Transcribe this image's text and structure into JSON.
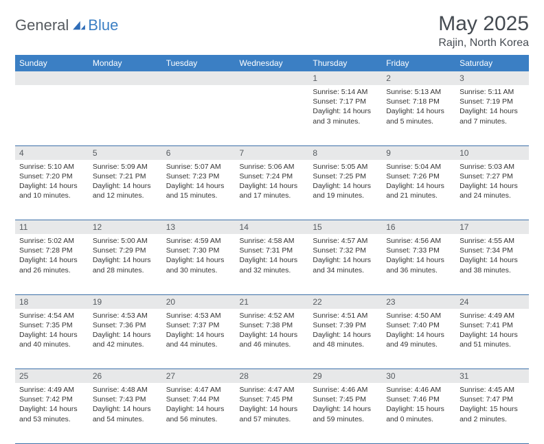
{
  "brand": {
    "part1": "General",
    "part2": "Blue"
  },
  "title": "May 2025",
  "location": "Rajin, North Korea",
  "colors": {
    "header_bg": "#3b7fc4",
    "header_text": "#ffffff",
    "daynum_bg": "#e7e8e9",
    "cell_border": "#3b6fa8",
    "body_text": "#333333",
    "title_text": "#454b52"
  },
  "weekdays": [
    "Sunday",
    "Monday",
    "Tuesday",
    "Wednesday",
    "Thursday",
    "Friday",
    "Saturday"
  ],
  "weeks": [
    [
      null,
      null,
      null,
      null,
      {
        "d": "1",
        "sr": "5:14 AM",
        "ss": "7:17 PM",
        "dl": "14 hours and 3 minutes."
      },
      {
        "d": "2",
        "sr": "5:13 AM",
        "ss": "7:18 PM",
        "dl": "14 hours and 5 minutes."
      },
      {
        "d": "3",
        "sr": "5:11 AM",
        "ss": "7:19 PM",
        "dl": "14 hours and 7 minutes."
      }
    ],
    [
      {
        "d": "4",
        "sr": "5:10 AM",
        "ss": "7:20 PM",
        "dl": "14 hours and 10 minutes."
      },
      {
        "d": "5",
        "sr": "5:09 AM",
        "ss": "7:21 PM",
        "dl": "14 hours and 12 minutes."
      },
      {
        "d": "6",
        "sr": "5:07 AM",
        "ss": "7:23 PM",
        "dl": "14 hours and 15 minutes."
      },
      {
        "d": "7",
        "sr": "5:06 AM",
        "ss": "7:24 PM",
        "dl": "14 hours and 17 minutes."
      },
      {
        "d": "8",
        "sr": "5:05 AM",
        "ss": "7:25 PM",
        "dl": "14 hours and 19 minutes."
      },
      {
        "d": "9",
        "sr": "5:04 AM",
        "ss": "7:26 PM",
        "dl": "14 hours and 21 minutes."
      },
      {
        "d": "10",
        "sr": "5:03 AM",
        "ss": "7:27 PM",
        "dl": "14 hours and 24 minutes."
      }
    ],
    [
      {
        "d": "11",
        "sr": "5:02 AM",
        "ss": "7:28 PM",
        "dl": "14 hours and 26 minutes."
      },
      {
        "d": "12",
        "sr": "5:00 AM",
        "ss": "7:29 PM",
        "dl": "14 hours and 28 minutes."
      },
      {
        "d": "13",
        "sr": "4:59 AM",
        "ss": "7:30 PM",
        "dl": "14 hours and 30 minutes."
      },
      {
        "d": "14",
        "sr": "4:58 AM",
        "ss": "7:31 PM",
        "dl": "14 hours and 32 minutes."
      },
      {
        "d": "15",
        "sr": "4:57 AM",
        "ss": "7:32 PM",
        "dl": "14 hours and 34 minutes."
      },
      {
        "d": "16",
        "sr": "4:56 AM",
        "ss": "7:33 PM",
        "dl": "14 hours and 36 minutes."
      },
      {
        "d": "17",
        "sr": "4:55 AM",
        "ss": "7:34 PM",
        "dl": "14 hours and 38 minutes."
      }
    ],
    [
      {
        "d": "18",
        "sr": "4:54 AM",
        "ss": "7:35 PM",
        "dl": "14 hours and 40 minutes."
      },
      {
        "d": "19",
        "sr": "4:53 AM",
        "ss": "7:36 PM",
        "dl": "14 hours and 42 minutes."
      },
      {
        "d": "20",
        "sr": "4:53 AM",
        "ss": "7:37 PM",
        "dl": "14 hours and 44 minutes."
      },
      {
        "d": "21",
        "sr": "4:52 AM",
        "ss": "7:38 PM",
        "dl": "14 hours and 46 minutes."
      },
      {
        "d": "22",
        "sr": "4:51 AM",
        "ss": "7:39 PM",
        "dl": "14 hours and 48 minutes."
      },
      {
        "d": "23",
        "sr": "4:50 AM",
        "ss": "7:40 PM",
        "dl": "14 hours and 49 minutes."
      },
      {
        "d": "24",
        "sr": "4:49 AM",
        "ss": "7:41 PM",
        "dl": "14 hours and 51 minutes."
      }
    ],
    [
      {
        "d": "25",
        "sr": "4:49 AM",
        "ss": "7:42 PM",
        "dl": "14 hours and 53 minutes."
      },
      {
        "d": "26",
        "sr": "4:48 AM",
        "ss": "7:43 PM",
        "dl": "14 hours and 54 minutes."
      },
      {
        "d": "27",
        "sr": "4:47 AM",
        "ss": "7:44 PM",
        "dl": "14 hours and 56 minutes."
      },
      {
        "d": "28",
        "sr": "4:47 AM",
        "ss": "7:45 PM",
        "dl": "14 hours and 57 minutes."
      },
      {
        "d": "29",
        "sr": "4:46 AM",
        "ss": "7:45 PM",
        "dl": "14 hours and 59 minutes."
      },
      {
        "d": "30",
        "sr": "4:46 AM",
        "ss": "7:46 PM",
        "dl": "15 hours and 0 minutes."
      },
      {
        "d": "31",
        "sr": "4:45 AM",
        "ss": "7:47 PM",
        "dl": "15 hours and 2 minutes."
      }
    ]
  ],
  "labels": {
    "sunrise": "Sunrise: ",
    "sunset": "Sunset: ",
    "daylight": "Daylight: "
  }
}
